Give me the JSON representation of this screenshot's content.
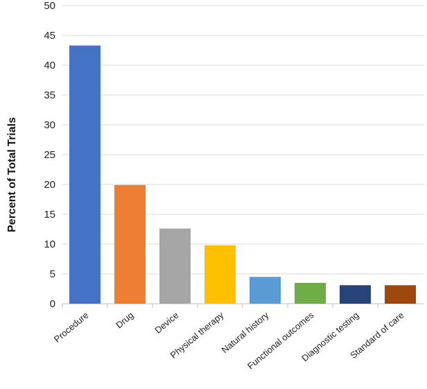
{
  "chart_data": {
    "type": "bar",
    "title": "",
    "xlabel": "",
    "ylabel": "Percent of Total Trials",
    "ylim": [
      0,
      50
    ],
    "yticks": [
      0,
      5,
      10,
      15,
      20,
      25,
      30,
      35,
      40,
      45,
      50
    ],
    "grid": true,
    "legend": "none",
    "categories": [
      "Procedure",
      "Drug",
      "Device",
      "Physical therapy",
      "Natural history",
      "Functional outcomes",
      "Diagnostic testing",
      "Standard of care"
    ],
    "values": [
      43.3,
      19.9,
      12.6,
      9.8,
      4.5,
      3.5,
      3.1,
      3.1
    ],
    "colors": [
      "#4472C4",
      "#ED7D31",
      "#A5A5A5",
      "#FFC000",
      "#5B9BD5",
      "#70AD47",
      "#264478",
      "#9E480E"
    ]
  }
}
